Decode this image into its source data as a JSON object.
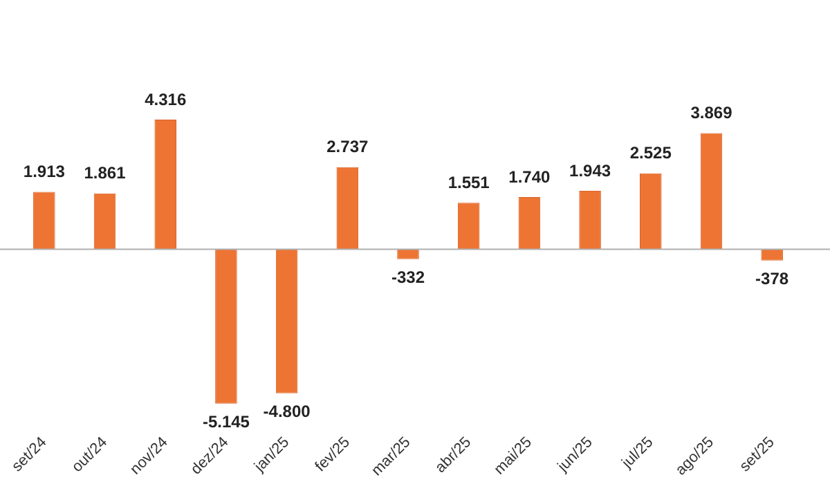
{
  "chart_data": {
    "type": "bar",
    "categories": [
      "set/24",
      "out/24",
      "nov/24",
      "dez/24",
      "jan/25",
      "fev/25",
      "mar/25",
      "abr/25",
      "mai/25",
      "jun/25",
      "jul/25",
      "ago/25",
      "set/25"
    ],
    "values": [
      1913,
      1861,
      4316,
      -5145,
      -4800,
      2737,
      -332,
      1551,
      1740,
      1943,
      2525,
      3869,
      -378
    ],
    "value_labels": [
      "1.913",
      "1.861",
      "4.316",
      "-5.145",
      "-4.800",
      "2.737",
      "-332",
      "1.551",
      "1.740",
      "1.943",
      "2.525",
      "3.869",
      "-378"
    ],
    "color": "#ed7432",
    "grid": false,
    "legend": false
  }
}
